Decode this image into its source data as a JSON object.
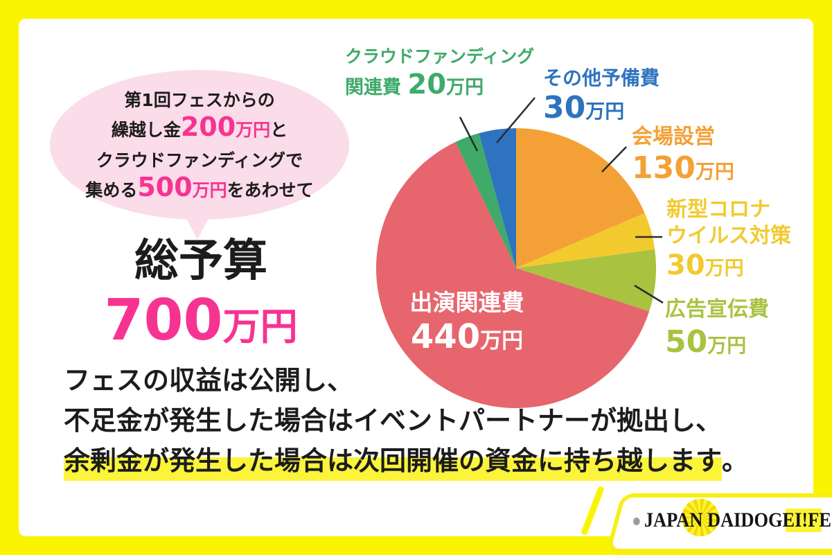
{
  "frame": {
    "border_color": "#FAF400"
  },
  "speech_bubble": {
    "bg_color": "#FBDCE9",
    "accent_color": "#F73392",
    "line1": "第1回フェスからの",
    "line2_pre": "繰越し金",
    "line2_num": "200",
    "line2_unit": "万円",
    "line2_post": "と",
    "line3": "クラウドファンディングで",
    "line4_pre": "集める",
    "line4_num": "500",
    "line4_unit": "万円",
    "line4_post": "をあわせて"
  },
  "budget": {
    "title": "総予算",
    "amount": "700",
    "unit": "万円",
    "amount_color": "#F73392"
  },
  "chart_data": {
    "type": "pie",
    "title": "総予算 700万円",
    "unit": "万円",
    "total": 700,
    "start_angle_deg": -90,
    "direction": "clockwise",
    "slices": [
      {
        "key": "venue",
        "label": "会場設営",
        "value": 130,
        "color": "#F3A136"
      },
      {
        "key": "covid",
        "label": "新型コロナウイルス対策",
        "value": 30,
        "color": "#F2CA2E"
      },
      {
        "key": "ads",
        "label": "広告宣伝費",
        "value": 50,
        "color": "#A9C240"
      },
      {
        "key": "performance",
        "label": "出演関連費",
        "value": 440,
        "color": "#E7656D"
      },
      {
        "key": "crowdfunding",
        "label": "クラウドファンディング関連費",
        "value": 20,
        "color": "#3FAA6A"
      },
      {
        "key": "reserve",
        "label": "その他予備費",
        "value": 30,
        "color": "#2E73BF"
      }
    ]
  },
  "callouts": {
    "crowdfunding": {
      "line1": "クラウドファンディング",
      "line2": "関連費",
      "num": "20",
      "unit": "万円",
      "color": "#3FAA6A"
    },
    "reserve": {
      "line1": "その他予備費",
      "num": "30",
      "unit": "万円",
      "color": "#2E73BF"
    },
    "venue": {
      "line1": "会場設営",
      "num": "130",
      "unit": "万円",
      "color": "#F3A136"
    },
    "covid": {
      "line1": "新型コロナ",
      "line2": "ウイルス対策",
      "num": "30",
      "unit": "万円",
      "color": "#F2CA2E"
    },
    "ads": {
      "line1": "広告宣伝費",
      "num": "50",
      "unit": "万円",
      "color": "#A9C240"
    },
    "performance": {
      "line1": "出演関連費",
      "num": "440",
      "unit": "万円",
      "color": "#FFFFFF"
    }
  },
  "footer": {
    "line1": "フェスの収益は公開し、",
    "line2": "不足金が発生した場合はイベントパートナーが拠出し、",
    "line3_highlight": "余剰金が発生した場合は次回開催の資金に持ち越します",
    "line3_tail": "。",
    "highlight_color": "#FBF43B"
  },
  "logo": {
    "japan": "JAPAN",
    "daidogei": "DAIDOGEI!",
    "fes": "FES"
  }
}
